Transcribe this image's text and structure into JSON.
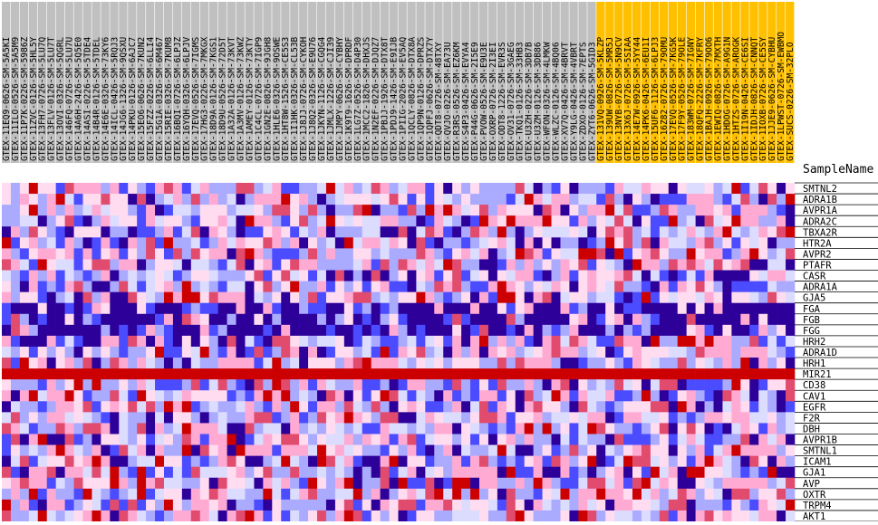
{
  "chart_data": {
    "type": "heatmap",
    "header_label": "SampleName",
    "column_group_colors": {
      "gray": "#c0c0c0",
      "gold": "#ffc000"
    },
    "color_scale": {
      "0": "#2d0099",
      "1": "#4b4bff",
      "2": "#aaaaff",
      "3": "#dcdcff",
      "4": "#ffdcf0",
      "5": "#ffaad2",
      "6": "#e14b6e",
      "7": "#cc0000"
    },
    "samples": [
      "GTEX-11EQ9-0626-SM-5A5KI",
      "GTEX-11ILO-0526-SM-5A5M9",
      "GTEX-11P7K-0226-SM-5986Z",
      "GTEX-11ZVC-0126-SM-5HL5Y",
      "GTEX-13FH7-0726-SM-5LU7Q",
      "GTEX-13FLV-0126-SM-5LU7T",
      "GTEX-13OVI-0326-SM-5QGRL",
      "GTEX-146FQ-0726-SM-5LU7U",
      "GTEX-14A6H-2426-SM-5Q5E0",
      "GTEX-14ASI-0226-SM-5TDE4",
      "GTEX-14B4R-0126-SM-5TDEL",
      "GTEX-14E6E-0326-SM-73KY6",
      "GTEX-14ICL-0426-SM-5RQJ3",
      "GTEX-14JG6-1326-SM-9QSXU",
      "GTEX-14PKU-0126-SM-6AJC7",
      "GTEX-15EO6-0626-SM-7KUN2",
      "GTEX-15FZZ-0226-SM-6LLI4",
      "GTEX-15G1A-0326-SM-6M467",
      "GTEX-15RIE-0326-SM-7KUM8",
      "GTEX-16BQI-0726-SM-6LPJZ",
      "GTEX-16YQH-0326-SM-6LPJV",
      "GTEX-17EVQ-0526-SM-7IGMS",
      "GTEX-17HG3-0226-SM-7MKGX",
      "GTEX-18D9A-0126-SM-7KGS1",
      "GTEX-18D9U-0526-SM-72D5T",
      "GTEX-1A32A-0126-SM-73KVT",
      "GTEX-1A3MV-0126-SM-73KWZ",
      "GTEX-1AMEY-0126-SM-73KTY",
      "GTEX-1C4CL-0726-SM-7IGP9",
      "GTEX-1GN2E-0826-SM-9JGH8",
      "GTEX-1HLE6-0326-SM-9OSWE",
      "GTEX-1HT8W-1526-SM-CE5S3",
      "GTEX-1I1HK-0326-SM-CL53B",
      "GTEX-1J8JJ-0726-SM-CYKOH",
      "GTEX-1J8Q2-0326-SM-E9U76",
      "GTEX-1JKYN-1126-SM-CGQG4",
      "GTEX-1JMLX-1226-SM-CJI39",
      "GTEX-1JMPY-0626-SM-CYBHY",
      "GTEX-1K9T9-1626-SM-DPRDF",
      "GTEX-1LG7Z-0526-SM-D4P30",
      "GTEX-1MCC2-1826-SM-DHXJS",
      "GTEX-1N2EF-0226-SM-DJQZ7",
      "GTEX-1PBJJ-1926-SM-DTX8T",
      "GTEX-1PDJ9-1426-SM-E9IJB",
      "GTEX-1PIIG-2026-SM-EV5AQ",
      "GTEX-1QCLY-0826-SM-DTX8A",
      "GTEX-1QP9N-0126-SM-DPRZS",
      "GTEX-1QPFJ-0626-SM-DTX7Y",
      "GTEX-QDT8-0726-SM-48TXY",
      "GTEX-QVJO-0226-SM-EA73U",
      "GTEX-R3RS-0526-SM-EZ6KM",
      "GTEX-S4P3-0426-SM-EVYA4",
      "GTEX-P44G-0626-SM-2I5E9",
      "GTEX-PVOW-0526-SM-E9U3E",
      "GTEX-OXRP-0726-SM-2I3EI",
      "GTEX-ODT8-1226-SM-EVR3S",
      "GTEX-OV31-0726-SM-3GAEG",
      "GTEX-TKQ1-0126-SM-33HB3",
      "GTEX-U3ZH-0226-SM-3DB7B",
      "GTEX-U3ZM-0126-SM-3DB86",
      "GTEX-WFON-0326-SM-4LMKW",
      "GTEX-WLZC-0126-SM-4BQ06",
      "GTEX-XV7Q-0426-SM-4BRVT",
      "GTEX-Y9LG-0426-SM-4VBRT",
      "GTEX-ZDXO-0126-SM-7EPTS",
      "GTEX-ZYT6-0626-SM-5GID3",
      "GTEX-131VQ-0926-SM-5KLZP",
      "GTEX-139UW-0826-SM-5MR5J",
      "GTEX-13NYB-0726-SM-5N9CV",
      "GTEX-13X6J-0726-SM-5SIAA",
      "GTEX-14E7W-0926-SM-5YY44",
      "GTEX-14PK6-0426-SM-6EU1I",
      "GTEX-15UF6-1126-SM-6LPJ3",
      "GTEX-16Z82-0726-SM-79OMU",
      "GTEX-17EVQ-0526-SM-7KG5K",
      "GTEX-17F9Y-0526-SM-79OLE",
      "GTEX-183WM-0726-SM-7IGNY",
      "GTEX-18QFQ-2226-SM-7KFRY",
      "GTEX-1BAJH-0926-SM-79OO6",
      "GTEX-1EWIQ-0826-SM-7MXTH",
      "GTEX-1HDOG-0726-SM-A9G1N",
      "GTEX-1HTZS-0726-SM-AROGK",
      "GTEX-1I19N-0426-SM-CE6SI",
      "GTEX-1IDJH-0826-SM-CNNQT",
      "GTEX-1IOXB-0726-SM-CE5SY",
      "GTEX-1JJE9-0626-SM-CYBHU",
      "GTEX-1LPWST-0726-SM-EWBMO",
      "GTEX-SUCS-0226-SM-32PLO"
    ],
    "group_split_index": 66,
    "genes": [
      "SMTNL2",
      "ADRA1B",
      "AVPR1A",
      "ADRA2C",
      "TBXA2R",
      "HTR2A",
      "AVPR2",
      "PTAFR",
      "CASR",
      "ADRA1A",
      "GJA5",
      "FGA",
      "FGB",
      "FGG",
      "HRH2",
      "ADRA1D",
      "HRH1",
      "MIR21",
      "CD38",
      "CAV1",
      "EGFR",
      "F2R",
      "DBH",
      "AVPR1B",
      "SMTNL1",
      "ICAM1",
      "GJA1",
      "AVP",
      "OXTR",
      "TRPM4",
      "AKT1"
    ]
  }
}
